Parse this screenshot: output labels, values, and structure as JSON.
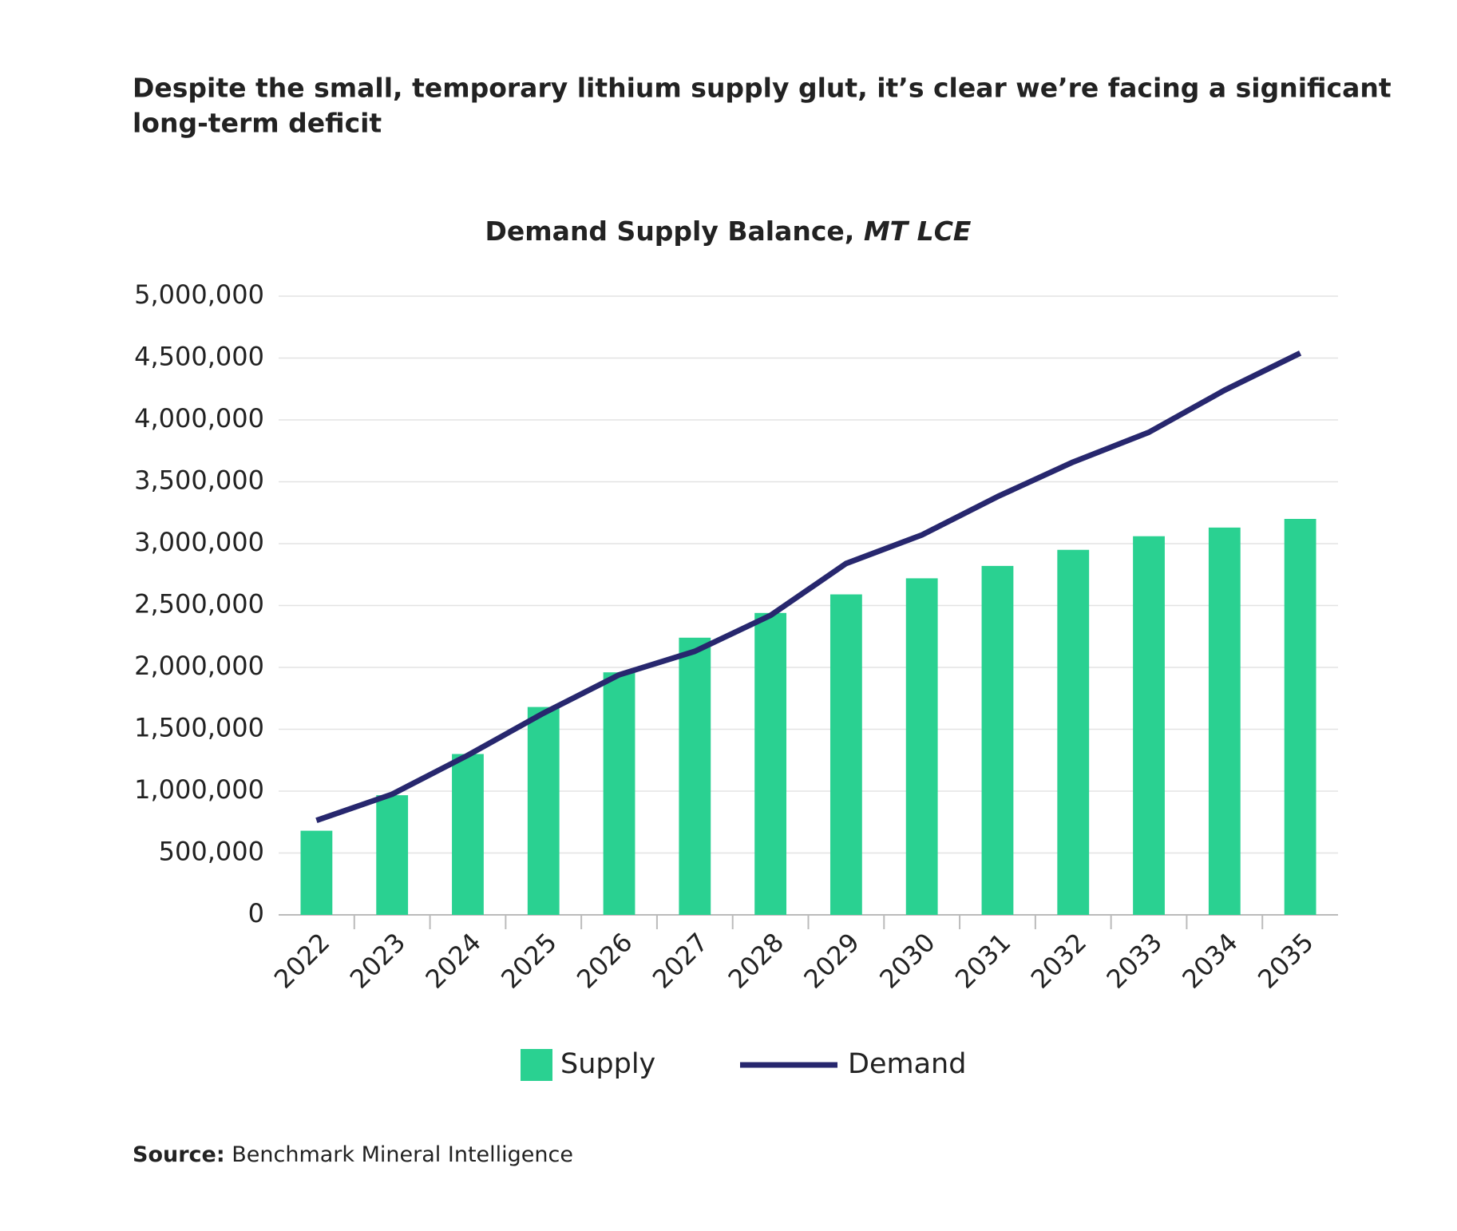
{
  "chart_data": {
    "type": "bar_line",
    "headline": [
      "Despite the small, temporary lithium supply glut, it’s clear we’re facing a significant",
      "long-term deficit"
    ],
    "title": "Demand Supply Balance,",
    "title_unit": "MT LCE",
    "source_label": "Source:",
    "source": "Benchmark Mineral Intelligence",
    "categories": [
      "2022",
      "2023",
      "2024",
      "2025",
      "2026",
      "2027",
      "2028",
      "2029",
      "2030",
      "2031",
      "2032",
      "2033",
      "2034",
      "2035"
    ],
    "series": [
      {
        "name": "Supply",
        "type": "bar",
        "color": "#2ad191",
        "values": [
          680000,
          967000,
          1300000,
          1680000,
          1960000,
          2240000,
          2440000,
          2590000,
          2720000,
          2820000,
          2950000,
          3060000,
          3130000,
          3200000
        ]
      },
      {
        "name": "Demand",
        "type": "line",
        "color": "#27276e",
        "values": [
          763000,
          975000,
          1290000,
          1630000,
          1940000,
          2130000,
          2420000,
          2840000,
          3070000,
          3380000,
          3660000,
          3900000,
          4240000,
          4540000
        ]
      }
    ],
    "ylim": [
      0,
      5000000
    ],
    "yticks": [
      0,
      {
        "value": 500000,
        "label": "500,000"
      },
      {
        "value": 1000000,
        "label": "1,000,000"
      },
      {
        "value": 1500000,
        "label": "1,500,000"
      },
      {
        "value": 2000000,
        "label": "2,000,000"
      },
      {
        "value": 2500000,
        "label": "2,500,000"
      },
      {
        "value": 3000000,
        "label": "3,000,000"
      },
      {
        "value": 3500000,
        "label": "3,500,000"
      },
      {
        "value": 4000000,
        "label": "4,000,000"
      },
      {
        "value": 4500000,
        "label": "4,500,000"
      },
      {
        "value": 5000000,
        "label": "5,000,000"
      }
    ],
    "grid": true,
    "legend": "bottom"
  }
}
